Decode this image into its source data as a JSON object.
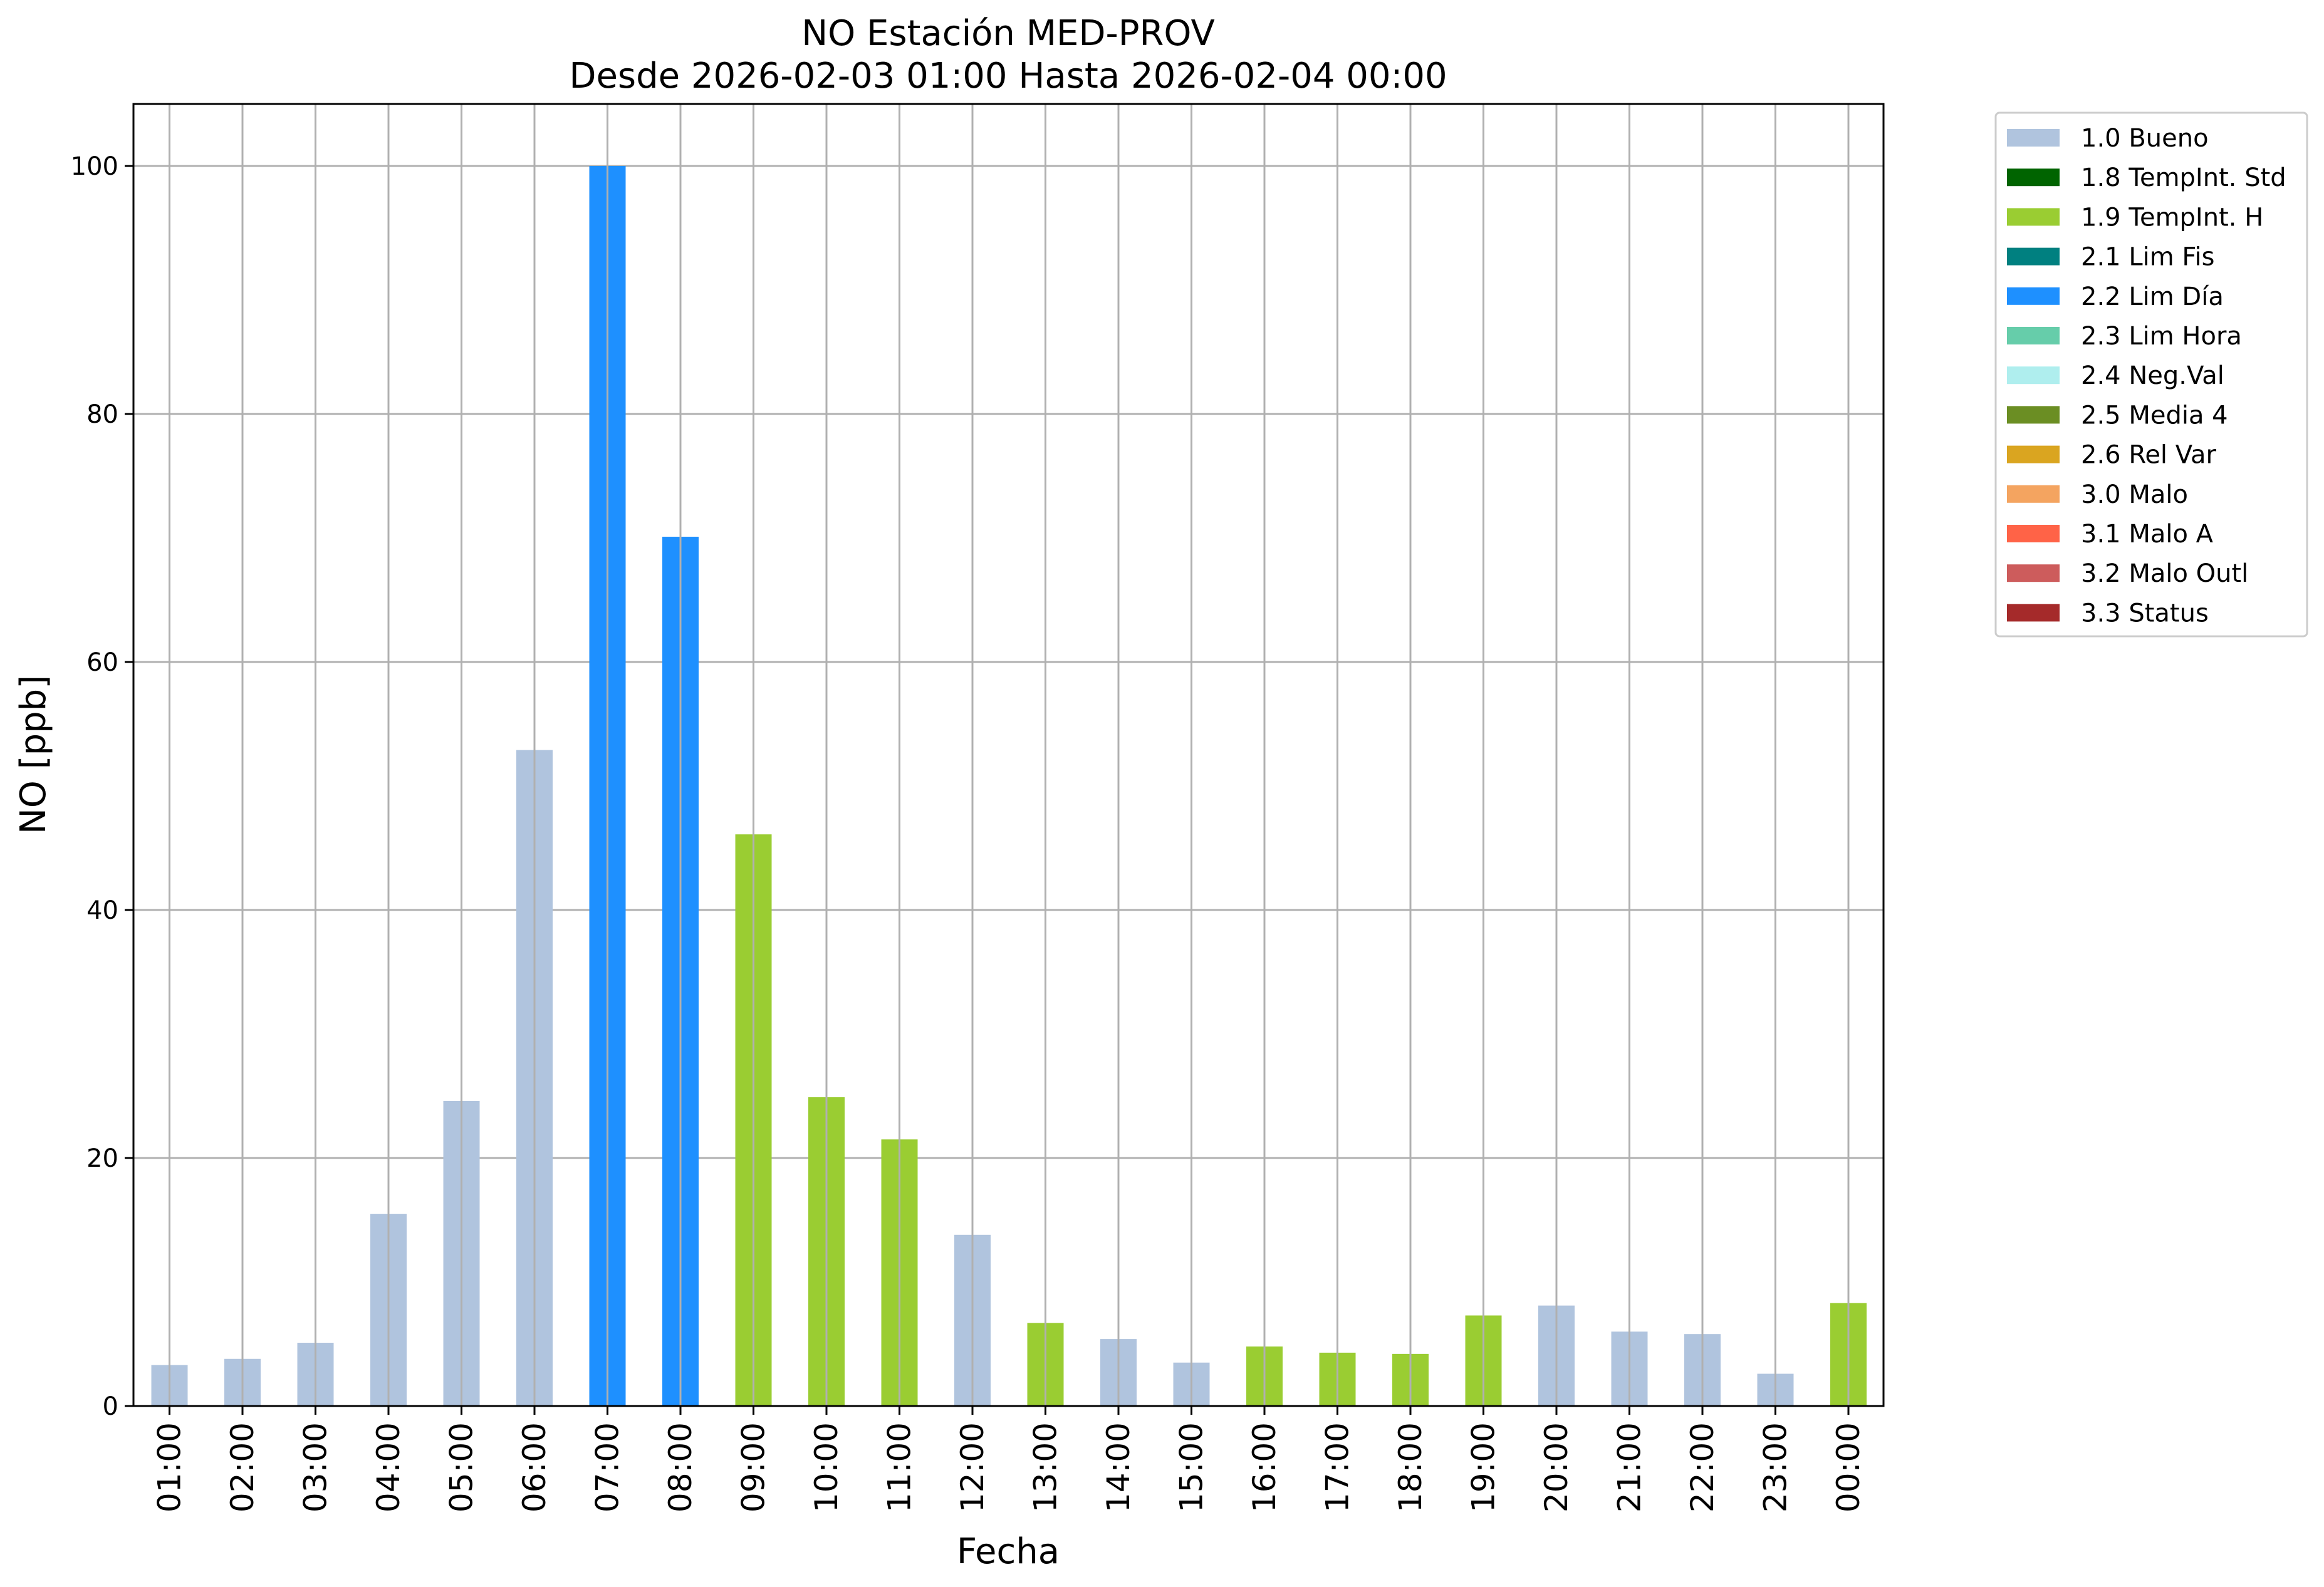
{
  "chart_data": {
    "type": "bar",
    "title": "NO Estación MED-PROV",
    "subtitle": "Desde 2026-02-03 01:00 Hasta 2026-02-04 00:00",
    "xlabel": "Fecha",
    "ylabel": "NO [ppb]",
    "ylim": [
      0,
      105
    ],
    "yticks": [
      0,
      20,
      40,
      60,
      80,
      100
    ],
    "grid": true,
    "legend_position": "outside-top-right",
    "categories": [
      "01:00",
      "02:00",
      "03:00",
      "04:00",
      "05:00",
      "06:00",
      "07:00",
      "08:00",
      "09:00",
      "10:00",
      "11:00",
      "12:00",
      "13:00",
      "14:00",
      "15:00",
      "16:00",
      "17:00",
      "18:00",
      "19:00",
      "20:00",
      "21:00",
      "22:00",
      "23:00",
      "00:00"
    ],
    "values": [
      3.3,
      3.8,
      5.1,
      15.5,
      24.6,
      52.9,
      100.0,
      70.1,
      46.1,
      24.9,
      21.5,
      13.8,
      6.7,
      5.4,
      3.5,
      4.8,
      4.3,
      4.2,
      7.3,
      8.1,
      6.0,
      5.8,
      2.6,
      8.3
    ],
    "flags": [
      "1.0",
      "1.0",
      "1.0",
      "1.0",
      "1.0",
      "1.0",
      "2.2",
      "2.2",
      "1.9",
      "1.9",
      "1.9",
      "1.0",
      "1.9",
      "1.0",
      "1.0",
      "1.9",
      "1.9",
      "1.9",
      "1.9",
      "1.0",
      "1.0",
      "1.0",
      "1.0",
      "1.9"
    ],
    "legend": [
      {
        "code": "1.0",
        "label": "1.0 Bueno",
        "color": "#b0c4de"
      },
      {
        "code": "1.8",
        "label": "1.8 TempInt. Std",
        "color": "#006400"
      },
      {
        "code": "1.9",
        "label": "1.9 TempInt. H",
        "color": "#9acd32"
      },
      {
        "code": "2.1",
        "label": "2.1 Lim Fis",
        "color": "#008080"
      },
      {
        "code": "2.2",
        "label": "2.2 Lim Día",
        "color": "#1e90ff"
      },
      {
        "code": "2.3",
        "label": "2.3 Lim Hora",
        "color": "#66cdaa"
      },
      {
        "code": "2.4",
        "label": "2.4 Neg.Val",
        "color": "#afeeee"
      },
      {
        "code": "2.5",
        "label": "2.5 Media 4",
        "color": "#6b8e23"
      },
      {
        "code": "2.6",
        "label": "2.6 Rel Var",
        "color": "#daa520"
      },
      {
        "code": "3.0",
        "label": "3.0 Malo",
        "color": "#f4a460"
      },
      {
        "code": "3.1",
        "label": "3.1 Malo A",
        "color": "#ff6347"
      },
      {
        "code": "3.2",
        "label": "3.2 Malo Outl",
        "color": "#cd5c5c"
      },
      {
        "code": "3.3",
        "label": "3.3 Status",
        "color": "#a52a2a"
      }
    ]
  }
}
